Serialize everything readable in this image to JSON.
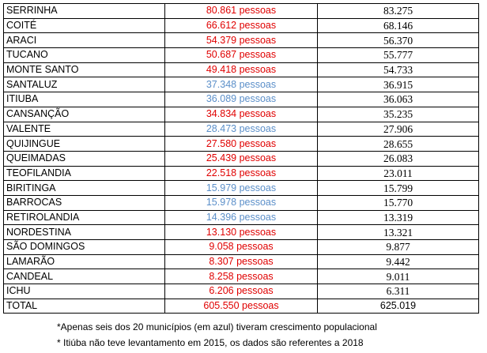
{
  "colors": {
    "decline": "#e00000",
    "growth": "#5b8fc9"
  },
  "rows": [
    {
      "name": "SERRINHA",
      "pop_old": "80.861 pessoas",
      "pop_new": "83.275",
      "trend": "red"
    },
    {
      "name": "COITÉ",
      "pop_old": "66.612 pessoas",
      "pop_new": "68.146",
      "trend": "red"
    },
    {
      "name": "ARACI",
      "pop_old": "54.379 pessoas",
      "pop_new": "56.370",
      "trend": "red"
    },
    {
      "name": "TUCANO",
      "pop_old": "50.687 pessoas",
      "pop_new": "55.777",
      "trend": "red"
    },
    {
      "name": "MONTE SANTO",
      "pop_old": "49.418 pessoas",
      "pop_new": "54.733",
      "trend": "red"
    },
    {
      "name": "SANTALUZ",
      "pop_old": "37.348 pessoas",
      "pop_new": "36.915",
      "trend": "blue"
    },
    {
      "name": "ITIUBA",
      "pop_old": "36.089 pessoas",
      "pop_new": "36.063",
      "trend": "blue"
    },
    {
      "name": "CANSANÇÃO",
      "pop_old": "34.834 pessoas",
      "pop_new": "35.235",
      "trend": "red"
    },
    {
      "name": "VALENTE",
      "pop_old": "28.473 pessoas",
      "pop_new": "27.906",
      "trend": "blue"
    },
    {
      "name": "QUIJINGUE",
      "pop_old": "27.580 pessoas",
      "pop_new": "28.655",
      "trend": "red"
    },
    {
      "name": "QUEIMADAS",
      "pop_old": "25.439 pessoas",
      "pop_new": "26.083",
      "trend": "red"
    },
    {
      "name": "TEOFILANDIA",
      "pop_old": "22.518 pessoas",
      "pop_new": "23.011",
      "trend": "red"
    },
    {
      "name": "BIRITINGA",
      "pop_old": "15.979 pessoas",
      "pop_new": "15.799",
      "trend": "blue"
    },
    {
      "name": "BARROCAS",
      "pop_old": "15.978 pessoas",
      "pop_new": "15.770",
      "trend": "blue"
    },
    {
      "name": "RETIROLANDIA",
      "pop_old": "14.396 pessoas",
      "pop_new": "13.319",
      "trend": "blue"
    },
    {
      "name": "NORDESTINA",
      "pop_old": "13.130 pessoas",
      "pop_new": "13.321",
      "trend": "red"
    },
    {
      "name": "SÃO DOMINGOS",
      "pop_old": "9.058 pessoas",
      "pop_new": "9.877",
      "trend": "red"
    },
    {
      "name": "LAMARÃO",
      "pop_old": "8.307 pessoas",
      "pop_new": "9.442",
      "trend": "red"
    },
    {
      "name": "CANDEAL",
      "pop_old": "8.258 pessoas",
      "pop_new": "9.011",
      "trend": "red"
    },
    {
      "name": "ICHU",
      "pop_old": "6.206 pessoas",
      "pop_new": "6.311",
      "trend": "red"
    }
  ],
  "total": {
    "name": "TOTAL",
    "pop_old": "605.550 pessoas",
    "pop_new": "625.019"
  },
  "notes": {
    "note1": "*Apenas seis dos 20 municípios (em azul) tiveram crescimento populacional",
    "note2": "* Itiúba não teve levantamento em 2015, os dados são referentes a 2018"
  }
}
